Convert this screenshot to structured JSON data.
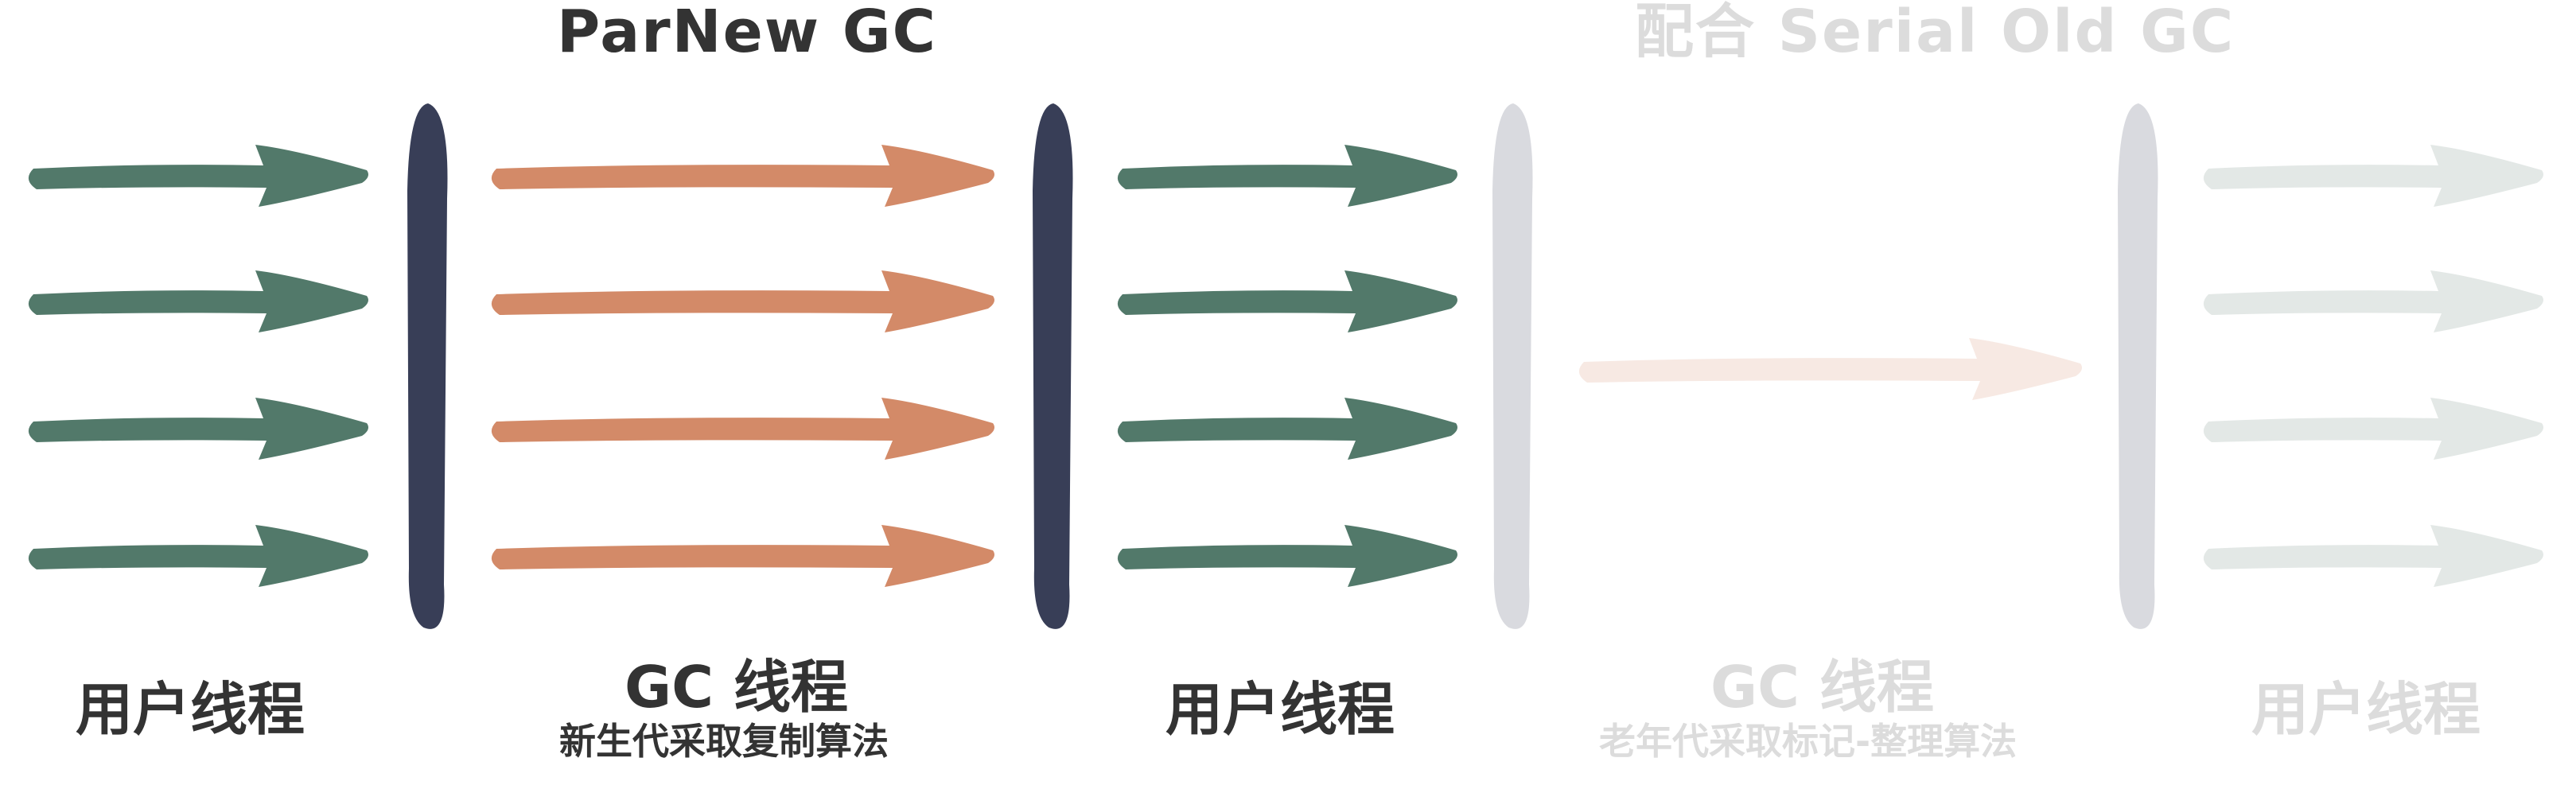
{
  "titles": {
    "parnew": "ParNew GC",
    "serial_old": "配合 Serial Old GC"
  },
  "labels": {
    "user_threads_1": "用户线程",
    "gc_threads_young": "GC 线程",
    "gc_young_algorithm": "新生代采取复制算法",
    "user_threads_2": "用户线程",
    "gc_threads_old": "GC 线程",
    "gc_old_algorithm": "老年代采取标记-整理算法",
    "user_threads_3": "用户线程"
  },
  "colors": {
    "user_thread": "#52796a",
    "gc_thread": "#d38a68",
    "safepoint_bar": "#383e57",
    "faded_bar": "#d9dadf",
    "faded_user_thread": "#e3e8e6",
    "faded_gc_thread": "#f7e9e3",
    "text": "#333333",
    "faded_text": "#dcdcdc"
  },
  "icons": {
    "user_thread_arrow": "arrow-right-icon",
    "gc_thread_arrow": "arrow-right-icon",
    "safepoint_bar": "vertical-bar"
  }
}
